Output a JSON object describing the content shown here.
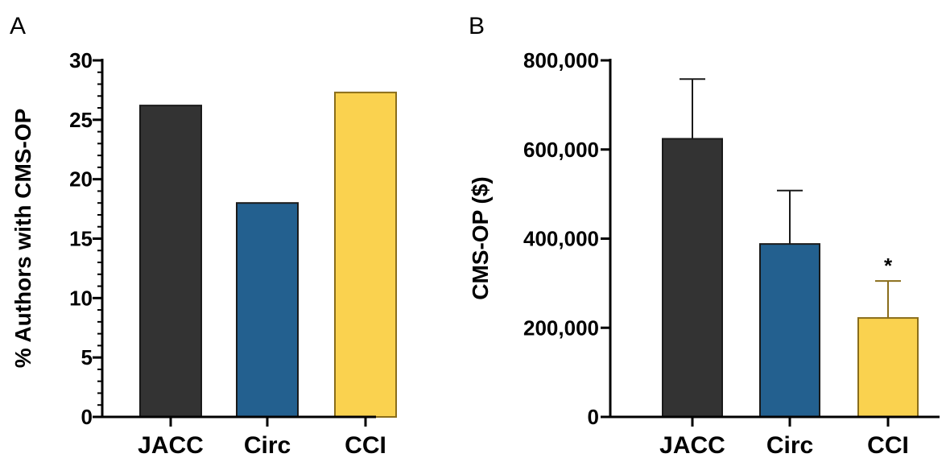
{
  "chart_data": [
    {
      "panel": "A",
      "type": "bar",
      "categories": [
        "JACC",
        "Circ",
        "CCI"
      ],
      "values": [
        26.2,
        18.0,
        27.3
      ],
      "colors": [
        "#333333",
        "#23608f",
        "#fad24f"
      ],
      "ylabel": "% Authors with CMS-OP",
      "ylim": [
        0,
        30
      ],
      "yticks": [
        "0",
        "5",
        "10",
        "15",
        "20",
        "25",
        "30"
      ],
      "grid": false
    },
    {
      "panel": "B",
      "type": "bar",
      "categories": [
        "JACC",
        "Circ",
        "CCI"
      ],
      "values": [
        624000,
        388000,
        222000
      ],
      "error_upper": [
        758000,
        508000,
        305000
      ],
      "colors": [
        "#333333",
        "#23608f",
        "#fad24f"
      ],
      "ylabel": "CMS-OP ($)",
      "ylim": [
        0,
        800000
      ],
      "yticks": [
        "0",
        "200,000",
        "400,000",
        "600,000",
        "800,000"
      ],
      "annotations": [
        {
          "category": "CCI",
          "text": "*"
        }
      ],
      "grid": false
    }
  ]
}
